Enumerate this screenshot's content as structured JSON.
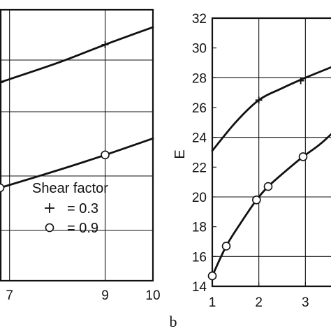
{
  "chart_data": [
    {
      "type": "line",
      "panel": "left (partial)",
      "x": [
        6.8,
        9.0,
        10.0
      ],
      "xticks": [
        "7",
        "9",
        "10"
      ],
      "xlim": [
        6.8,
        10.0
      ],
      "series": [
        {
          "marker": "+",
          "points": [
            [
              6.8,
              4.1
            ],
            [
              9.0,
              4.88
            ]
          ],
          "curve": [
            [
              6.8,
              4.1
            ],
            [
              8.0,
              4.5
            ],
            [
              9.0,
              4.88
            ],
            [
              10.0,
              5.24
            ]
          ]
        },
        {
          "marker": "o",
          "points": [
            [
              6.8,
              1.92
            ],
            [
              9.0,
              2.6
            ]
          ],
          "curve": [
            [
              6.8,
              1.92
            ],
            [
              8.0,
              2.28
            ],
            [
              9.0,
              2.6
            ],
            [
              10.0,
              2.94
            ]
          ]
        }
      ],
      "legend": {
        "title": "Shear factor",
        "entries": [
          {
            "symbol": "+",
            "label": "= 0.3"
          },
          {
            "symbol": "o",
            "label": "= 0.9"
          }
        ],
        "placement": "lower-right"
      },
      "grid": true
    },
    {
      "type": "line",
      "panel": "right (partial)",
      "xlabel": "",
      "ylabel": "E",
      "xlim": [
        1,
        3.55
      ],
      "ylim": [
        14,
        32
      ],
      "xticks": [
        "1",
        "2",
        "3"
      ],
      "yticks": [
        "14",
        "16",
        "18",
        "20",
        "22",
        "24",
        "26",
        "28",
        "30",
        "32"
      ],
      "series": [
        {
          "marker": "+",
          "points": [
            [
              2.0,
              26.5
            ],
            [
              2.9,
              27.8
            ]
          ],
          "curve": [
            [
              1.0,
              23.1
            ],
            [
              1.5,
              25.0
            ],
            [
              2.0,
              26.5
            ],
            [
              2.5,
              27.3
            ],
            [
              3.0,
              28.0
            ],
            [
              3.55,
              28.7
            ]
          ]
        },
        {
          "marker": "o",
          "points": [
            [
              1.0,
              14.7
            ],
            [
              1.3,
              16.7
            ],
            [
              1.95,
              19.8
            ],
            [
              2.2,
              20.7
            ],
            [
              2.95,
              22.7
            ]
          ],
          "curve": [
            [
              1.0,
              14.7
            ],
            [
              1.3,
              16.7
            ],
            [
              1.6,
              18.2
            ],
            [
              1.95,
              19.8
            ],
            [
              2.2,
              20.7
            ],
            [
              2.6,
              21.8
            ],
            [
              2.95,
              22.7
            ],
            [
              3.3,
              23.5
            ],
            [
              3.55,
              24.2
            ]
          ]
        }
      ],
      "grid": true
    }
  ],
  "panel_label": "b"
}
